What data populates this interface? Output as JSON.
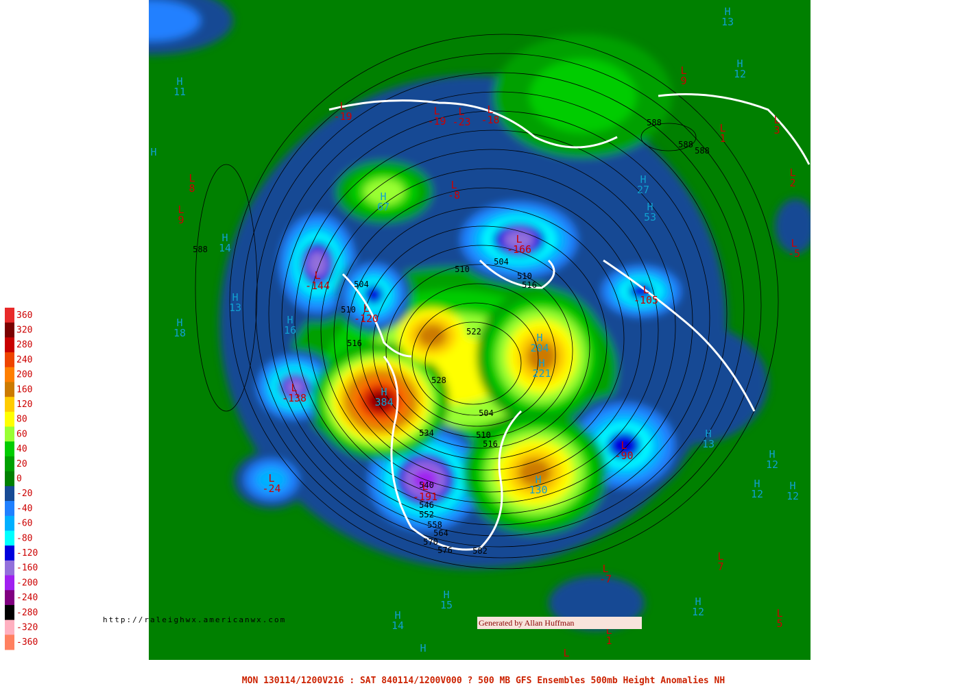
{
  "map": {
    "title": "MON 130114/1200V216 : SAT 840114/1200V000  ? 500 MB GFS Ensembles 500mb Height Anomalies NH",
    "url": "http://raleighwx.americanwx.com",
    "credit": "Generated by Allan Huffman",
    "colorbar": {
      "levels": [
        360,
        320,
        280,
        240,
        200,
        160,
        120,
        80,
        60,
        40,
        20,
        0,
        -20,
        -40,
        -60,
        -80,
        -120,
        -160,
        -200,
        -240,
        -280,
        -320,
        -360
      ],
      "colors": [
        "#e82a2a",
        "#7a0000",
        "#c80000",
        "#ee4400",
        "#ff7f00",
        "#cc7a00",
        "#ffcc00",
        "#ffff00",
        "#99ff33",
        "#00cc00",
        "#00a000",
        "#008000",
        "#174a94",
        "#2080ff",
        "#00b0ff",
        "#00ffff",
        "#0000dd",
        "#9370db",
        "#a020f0",
        "#800080",
        "#000000",
        "#ffb0c0",
        "#ff8060"
      ]
    },
    "centers": [
      {
        "type": "H",
        "value": 13
      },
      {
        "type": "H",
        "value": 12
      },
      {
        "type": "L",
        "value": 9
      },
      {
        "type": "L",
        "value": -19
      },
      {
        "type": "L",
        "value": -19
      },
      {
        "type": "L",
        "value": -23
      },
      {
        "type": "L",
        "value": -18
      },
      {
        "type": "L",
        "value": 1
      },
      {
        "type": "L",
        "value": 3
      },
      {
        "type": "H",
        "value": 11
      },
      {
        "type": "H"
      },
      {
        "type": "L",
        "value": 8
      },
      {
        "type": "L",
        "value": 9
      },
      {
        "type": "H",
        "value": 67
      },
      {
        "type": "L",
        "value": -8
      },
      {
        "type": "H",
        "value": 27
      },
      {
        "type": "H",
        "value": 53
      },
      {
        "type": "L",
        "value": 2
      },
      {
        "type": "L",
        "value": -5
      },
      {
        "type": "H",
        "value": 14
      },
      {
        "type": "H",
        "value": 13
      },
      {
        "type": "H",
        "value": 18
      },
      {
        "type": "H",
        "value": 16
      },
      {
        "type": "L",
        "value": -166
      },
      {
        "type": "L",
        "value": -144
      },
      {
        "type": "L",
        "value": -120
      },
      {
        "type": "L",
        "value": -105
      },
      {
        "type": "L",
        "value": -138
      },
      {
        "type": "H",
        "value": 384
      },
      {
        "type": "H",
        "value": 204
      },
      {
        "type": "H",
        "value": 221
      },
      {
        "type": "L",
        "value": -90
      },
      {
        "type": "H",
        "value": 13
      },
      {
        "type": "H",
        "value": 12
      },
      {
        "type": "H",
        "value": 12
      },
      {
        "type": "H",
        "value": 12
      },
      {
        "type": "L",
        "value": -24
      },
      {
        "type": "L",
        "value": -191
      },
      {
        "type": "H",
        "value": 130
      },
      {
        "type": "L",
        "value": 7
      },
      {
        "type": "L",
        "value": -7
      },
      {
        "type": "H",
        "value": 15
      },
      {
        "type": "H",
        "value": 14
      },
      {
        "type": "H",
        "value": 12
      },
      {
        "type": "L",
        "value": 5
      },
      {
        "type": "L",
        "value": 1
      },
      {
        "type": "H"
      },
      {
        "type": "L"
      }
    ],
    "contour_labels": [
      588,
      504,
      510,
      516,
      510,
      504,
      510,
      516,
      522,
      528,
      504,
      510,
      516,
      534,
      540,
      546,
      552,
      558,
      564,
      570,
      576,
      582,
      588,
      588,
      588
    ]
  }
}
